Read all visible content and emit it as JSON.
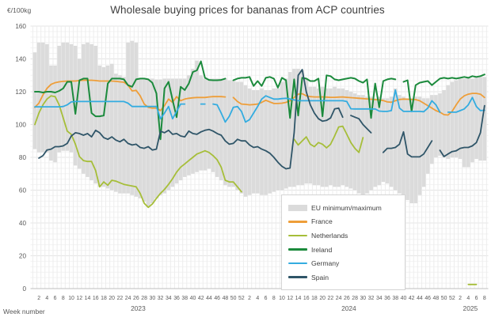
{
  "title": "Wholesale buying prices for bananas from ACP countries",
  "y_axis": {
    "unit_label": "€/100kg",
    "min": 0,
    "max": 160,
    "tick_step": 20,
    "tick_labels": [
      "0",
      "20",
      "40",
      "60",
      "80",
      "100",
      "120",
      "140",
      "160"
    ]
  },
  "x_axis": {
    "label": "Week number",
    "tick_step": 2,
    "years": [
      {
        "label": "2023",
        "weeks": 52
      },
      {
        "label": "2024",
        "weeks": 52
      },
      {
        "label": "2025",
        "weeks": 8
      }
    ]
  },
  "legend": {
    "items": [
      {
        "label": "EU minimum/maximum",
        "color": "#dbdbdb",
        "kind": "band"
      },
      {
        "label": "France",
        "color": "#ee9e39",
        "kind": "line"
      },
      {
        "label": "Netherlands",
        "color": "#a6be39",
        "kind": "line"
      },
      {
        "label": "Ireland",
        "color": "#1b8a3c",
        "kind": "line"
      },
      {
        "label": "Germany",
        "color": "#33ace0",
        "kind": "line"
      },
      {
        "label": "Spain",
        "color": "#2f5568",
        "kind": "line"
      }
    ]
  },
  "colors": {
    "band": "#dbdbdb",
    "grid_minor": "#f2f2f2",
    "grid_week": "#ededed",
    "grid_major": "#e4e4e4",
    "axis": "#bfbfbf",
    "tick_text": "#595959",
    "title_text": "#3f3f3f"
  },
  "chart_data": {
    "type": "line",
    "title": "Wholesale buying prices for bananas from ACP countries",
    "ylabel": "€/100kg",
    "xlabel": "Week number",
    "ylim": [
      0,
      160
    ],
    "x_description": "Weekly data: 2023 weeks 1-52, 2024 weeks 1-52, 2025 weeks 1-8",
    "grid": true,
    "legend_position": "lower-center-box",
    "band": {
      "name": "EU minimum/maximum",
      "max_2023": [
        144,
        150,
        150,
        149,
        136,
        136,
        148,
        150,
        150,
        149,
        148,
        140,
        149,
        150,
        149,
        148,
        136,
        135,
        136,
        137,
        131,
        130,
        129,
        150,
        151,
        150,
        128,
        128,
        128,
        128,
        127.5,
        127.5,
        128,
        128,
        128,
        128,
        128,
        128,
        130,
        134,
        139,
        130,
        128,
        128,
        128,
        128,
        128,
        128,
        127,
        127,
        126,
        126
      ],
      "min_2023": [
        85,
        83,
        83,
        83,
        78,
        77,
        83,
        84,
        84,
        83,
        75,
        73,
        70,
        68,
        66,
        64,
        62,
        62,
        61,
        60,
        59,
        58,
        58,
        58,
        57,
        56,
        55,
        53,
        50,
        52,
        55,
        57,
        58,
        60,
        62,
        64,
        66,
        68,
        69,
        70,
        71,
        72,
        72,
        73,
        71,
        68,
        66,
        63,
        62,
        62,
        60,
        58
      ],
      "max_2024": [
        124,
        122,
        121,
        121,
        122,
        121,
        121,
        122,
        122,
        126,
        128,
        132,
        134,
        134,
        133,
        128,
        123,
        123,
        122,
        123,
        122,
        122,
        123,
        122,
        122,
        121,
        120,
        119,
        118,
        118,
        117,
        117,
        116,
        117,
        116,
        116,
        117,
        122,
        118,
        117,
        116,
        116,
        117,
        117,
        116,
        116,
        118,
        118,
        119,
        121,
        124,
        126
      ],
      "min_2024": [
        56,
        57,
        58,
        58,
        57,
        57,
        58,
        59,
        60,
        60,
        61,
        62,
        62,
        63,
        63,
        64,
        64,
        63,
        63,
        62,
        62,
        63,
        62,
        62,
        63,
        62,
        61,
        60,
        58,
        57,
        58,
        60,
        62,
        63,
        65,
        64,
        62,
        60,
        58,
        55,
        54,
        52,
        52,
        57,
        62,
        70,
        76,
        80,
        81,
        80,
        79,
        80
      ],
      "max_2025": [
        127,
        128,
        128,
        129,
        128,
        129,
        129,
        129
      ],
      "min_2025": [
        80,
        79,
        74,
        74,
        77,
        79,
        78,
        78
      ]
    },
    "series": [
      {
        "name": "France",
        "color": "#ee9e39",
        "width": 1.8,
        "v2023": [
          110.5,
          113,
          118,
          122,
          124.5,
          125.5,
          126,
          126.3,
          126.5,
          126.5,
          126.5,
          126.8,
          127,
          127,
          127,
          126.8,
          126.5,
          126.5,
          126.5,
          126.5,
          126.3,
          126,
          125.8,
          124,
          120.5,
          120.8,
          117.5,
          112.5,
          110.5,
          110,
          110,
          108.5,
          111.5,
          115.5,
          113.5,
          117,
          114.5,
          115.5,
          116,
          116.3,
          116.5,
          116.5,
          116.5,
          116.8,
          117,
          117,
          117,
          116.8,
          null,
          116.5,
          114,
          112.5
        ],
        "v2024": [
          112.3,
          112,
          112.2,
          112.5,
          113.5,
          114.8,
          113.8,
          112.8,
          112.8,
          113,
          113.5,
          114.5,
          116.5,
          118.5,
          118.8,
          117.5,
          117,
          116.8,
          116.8,
          116.8,
          116.7,
          116.6,
          116.6,
          116.7,
          116.8,
          116.6,
          116.4,
          116.2,
          116,
          115.8,
          115.6,
          115.4,
          115.2,
          115,
          114.6,
          113.8,
          113.6,
          114.5,
          115.3,
          115.5,
          115.4,
          115.3,
          115.2,
          114.5,
          113,
          111.5,
          110,
          108.5,
          107.5,
          106,
          105.8,
          108
        ],
        "v2025": [
          112,
          115.5,
          117.5,
          118.5,
          119,
          119,
          118.5,
          116.5
        ]
      },
      {
        "name": "Netherlands",
        "color": "#a6be39",
        "width": 1.8,
        "v2023": [
          100,
          107,
          112,
          115.5,
          117.5,
          117,
          112,
          104,
          96,
          94,
          88,
          80.5,
          78,
          77.5,
          77.5,
          72,
          62,
          65,
          63,
          66,
          65.5,
          64.5,
          63.5,
          63,
          62.5,
          62,
          58,
          52,
          49.5,
          51.5,
          55,
          58,
          60.5,
          63.5,
          67,
          71,
          74,
          76,
          78,
          80,
          82,
          83,
          84,
          83,
          81,
          78.5,
          74,
          66,
          65,
          65,
          62,
          59
        ],
        "v2024": [
          null,
          null,
          null,
          null,
          null,
          null,
          null,
          null,
          null,
          null,
          null,
          null,
          91,
          87.5,
          90,
          92.5,
          88,
          86.5,
          89,
          88,
          85.8,
          88,
          93,
          98.5,
          99,
          94,
          89,
          85.5,
          83,
          92,
          null,
          null,
          null,
          null,
          null,
          null,
          null,
          null,
          null,
          null,
          null,
          null,
          null,
          null,
          null,
          null,
          null,
          null,
          null,
          null,
          null,
          null
        ],
        "v2025": [
          null,
          null,
          null,
          2.5,
          2.5,
          2.5,
          null,
          null
        ]
      },
      {
        "name": "Ireland",
        "color": "#1b8a3c",
        "width": 2,
        "v2023": [
          120,
          120,
          119.5,
          120,
          120,
          119.5,
          120.5,
          122,
          126,
          126,
          106.5,
          127,
          128,
          128,
          107,
          105,
          105,
          105.5,
          125,
          128,
          128,
          128,
          127.5,
          124,
          123,
          127.5,
          128,
          128,
          127.5,
          125.5,
          119,
          91,
          122,
          126,
          115,
          104.5,
          123,
          121,
          125,
          132,
          133,
          138.5,
          128.5,
          127.2,
          127,
          127,
          127.2,
          128,
          null,
          127,
          128,
          128.5
        ],
        "v2024": [
          128.5,
          129,
          123.5,
          126.5,
          123.5,
          128.5,
          129,
          128,
          122.5,
          128.5,
          127,
          104,
          127.5,
          105.5,
          128.5,
          128,
          126.5,
          126.5,
          128,
          105,
          130,
          129.5,
          127.5,
          127,
          127.5,
          128,
          128.5,
          128,
          126.5,
          125.5,
          127.5,
          104,
          125,
          110.5,
          126.5,
          127.5,
          128,
          127.5,
          null,
          126,
          127,
          108,
          124,
          125.5,
          126,
          126.5,
          124,
          126,
          128,
          128.5,
          128,
          128.5
        ],
        "v2025": [
          128,
          128.5,
          129,
          128.5,
          129.5,
          129,
          129.5,
          130.5
        ]
      },
      {
        "name": "Germany",
        "color": "#33ace0",
        "width": 1.8,
        "v2023": [
          110.8,
          110.8,
          110.8,
          110.8,
          110.8,
          110.8,
          110.8,
          111,
          112,
          113.8,
          114,
          114,
          114,
          114,
          114,
          114,
          114,
          114,
          114,
          114,
          114,
          114,
          114,
          113,
          111,
          111,
          111,
          111,
          111,
          111,
          111,
          103.5,
          107,
          111,
          103.5,
          108,
          112.5,
          112.5,
          null,
          112.5,
          null,
          112.5,
          112.5,
          null,
          112.5,
          112,
          107,
          101.5,
          105,
          110.5,
          111,
          108
        ],
        "v2024": [
          101.5,
          103,
          107,
          111,
          115.5,
          117.5,
          116.5,
          115.5,
          115.5,
          115.8,
          116,
          115.5,
          115,
          114.5,
          114.5,
          114.5,
          114.5,
          114.5,
          114.5,
          114.5,
          114.5,
          114.5,
          114.5,
          114.5,
          114.5,
          114,
          109.6,
          109.5,
          109.5,
          109.5,
          109.5,
          109.5,
          109.5,
          108.2,
          108,
          108,
          108.5,
          121,
          110,
          108,
          108,
          108,
          108,
          108,
          107.8,
          110,
          114.5,
          112,
          107.5,
          null,
          107.5,
          107.5
        ],
        "v2025": [
          107.5,
          108.5,
          109.5,
          112,
          116.5,
          111,
          108.5,
          108.7
        ]
      },
      {
        "name": "Spain",
        "color": "#2f5568",
        "width": 1.8,
        "v2023": [
          null,
          79.5,
          81,
          84.5,
          85,
          86.5,
          86.5,
          87,
          88.5,
          93,
          95,
          94.5,
          93.5,
          94.5,
          92.5,
          96.5,
          95,
          92,
          91,
          92.5,
          90.5,
          89.5,
          91,
          88.5,
          87.5,
          88,
          86,
          85.5,
          86.5,
          84.5,
          85,
          96,
          95,
          96.5,
          94,
          94.5,
          93,
          92.5,
          96,
          94.5,
          94,
          95.5,
          96.5,
          97,
          96,
          94.5,
          93.5,
          90,
          88,
          88.5,
          91,
          90
        ],
        "v2024": [
          90,
          87.5,
          86,
          86.5,
          85,
          84,
          82.5,
          80,
          77,
          74.5,
          73,
          73.5,
          95,
          130,
          133.5,
          120,
          112,
          107,
          103.5,
          102,
          102.5,
          104,
          109.5,
          110,
          104.5,
          null,
          105.5,
          104.5,
          103.5,
          100,
          97.5,
          95,
          null,
          null,
          83,
          85.5,
          85.5,
          86,
          88,
          95.5,
          82,
          80.3,
          80.3,
          80.3,
          82,
          86,
          90,
          null,
          84.3,
          80.5,
          82,
          83.5
        ],
        "v2025": [
          84,
          85.5,
          86,
          86,
          87,
          89,
          95,
          111.5
        ]
      }
    ]
  }
}
